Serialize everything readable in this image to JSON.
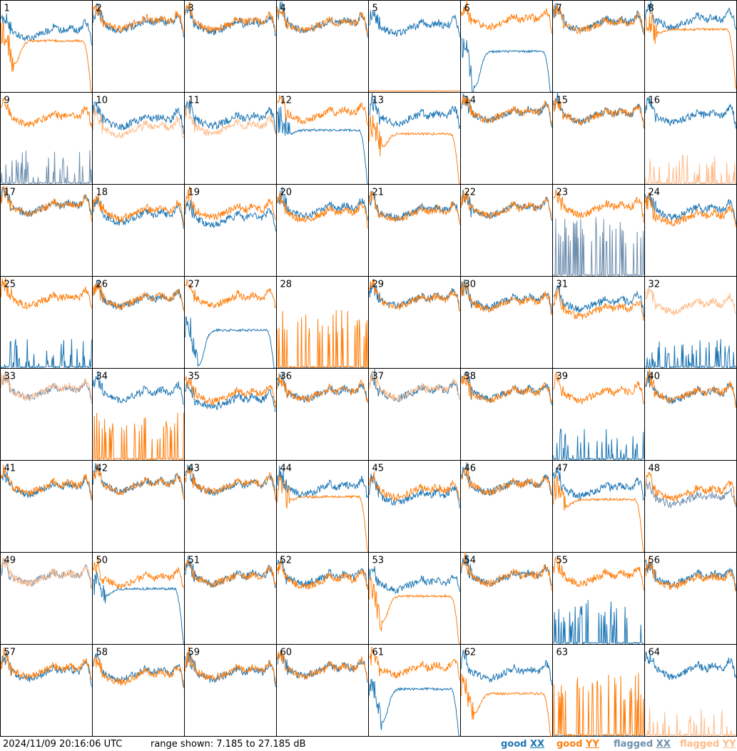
{
  "colors": {
    "good_xx": "#1f77b4",
    "good_yy": "#ff7f0e",
    "flagged_xx": "#7090b0",
    "flagged_yy": "#ffbb88",
    "frame": "#000000",
    "background": "#ffffff"
  },
  "footer": {
    "timestamp": "2024/11/09 20:16:06 UTC",
    "range": "range shown: 7.185 to 27.185 dB"
  },
  "legend": [
    {
      "label": "good",
      "pol": "XX",
      "color": "#1f77b4"
    },
    {
      "label": "good",
      "pol": "YY",
      "color": "#ff7f0e"
    },
    {
      "label": "flagged",
      "pol": "XX",
      "color": "#7090b0"
    },
    {
      "label": "flagged",
      "pol": "YY",
      "color": "#ffbb88"
    }
  ],
  "chart_data": {
    "type": "line",
    "layout": "8x8 grid of antenna spectra",
    "y_range_db": [
      7.185,
      27.185
    ],
    "series_names": [
      "XX",
      "YY"
    ],
    "panels": [
      {
        "label": "1",
        "xx": {
          "s": "base",
          "flag": false,
          "lvl": 20.5
        },
        "yy": {
          "s": "droop",
          "flag": false,
          "lvl": 18.3,
          "dip": 0.35
        }
      },
      {
        "label": "2",
        "xx": {
          "s": "base",
          "flag": false,
          "lvl": 22.1
        },
        "yy": {
          "s": "base",
          "flag": false,
          "lvl": 22.5
        }
      },
      {
        "label": "3",
        "xx": {
          "s": "base",
          "flag": false,
          "lvl": 21.9
        },
        "yy": {
          "s": "base",
          "flag": false,
          "lvl": 22.3
        }
      },
      {
        "label": "4",
        "xx": {
          "s": "base",
          "flag": false,
          "lvl": 22.1
        },
        "yy": {
          "s": "base",
          "flag": false,
          "lvl": 22.1
        }
      },
      {
        "label": "5",
        "xx": {
          "s": "base",
          "flag": false,
          "lvl": 21.5
        },
        "yy": {
          "s": "flat",
          "flag": false,
          "lvl": 7.4
        }
      },
      {
        "label": "6",
        "xx": {
          "s": "droop",
          "flag": false,
          "lvl": 16.0,
          "dip": 0.55
        },
        "yy": {
          "s": "base",
          "flag": false,
          "lvl": 22.9
        }
      },
      {
        "label": "7",
        "xx": {
          "s": "base",
          "flag": false,
          "lvl": 22.3
        },
        "yy": {
          "s": "base",
          "flag": false,
          "lvl": 22.1
        }
      },
      {
        "label": "8",
        "xx": {
          "s": "base",
          "flag": false,
          "lvl": 22.9
        },
        "yy": {
          "s": "droop",
          "flag": false,
          "lvl": 20.8,
          "dip": 0.05
        }
      },
      {
        "label": "9",
        "xx": {
          "s": "spike",
          "flag": true,
          "lvl": 8.5
        },
        "yy": {
          "s": "base",
          "flag": false,
          "lvl": 21.8
        }
      },
      {
        "label": "10",
        "xx": {
          "s": "base",
          "flag": false,
          "lvl": 21.2
        },
        "yy": {
          "s": "base",
          "flag": true,
          "lvl": 19.4
        }
      },
      {
        "label": "11",
        "xx": {
          "s": "base",
          "flag": false,
          "lvl": 21.4
        },
        "yy": {
          "s": "base",
          "flag": true,
          "lvl": 19.8
        }
      },
      {
        "label": "12",
        "xx": {
          "s": "droop",
          "flag": false,
          "lvl": 18.9,
          "dip": 0.05
        },
        "yy": {
          "s": "base",
          "flag": false,
          "lvl": 22.6
        }
      },
      {
        "label": "13",
        "xx": {
          "s": "base",
          "flag": false,
          "lvl": 21.9
        },
        "yy": {
          "s": "droop",
          "flag": false,
          "lvl": 18.1,
          "dip": 0.2
        }
      },
      {
        "label": "14",
        "xx": {
          "s": "base",
          "flag": false,
          "lvl": 22.7
        },
        "yy": {
          "s": "base",
          "flag": false,
          "lvl": 22.7
        }
      },
      {
        "label": "15",
        "xx": {
          "s": "base",
          "flag": false,
          "lvl": 22.4
        },
        "yy": {
          "s": "base",
          "flag": false,
          "lvl": 22.4
        }
      },
      {
        "label": "16",
        "xx": {
          "s": "base",
          "flag": false,
          "lvl": 22.1
        },
        "yy": {
          "s": "spike",
          "flag": true,
          "lvl": 7.8
        }
      },
      {
        "label": "17",
        "xx": {
          "s": "base",
          "flag": false,
          "lvl": 22.4
        },
        "yy": {
          "s": "base",
          "flag": false,
          "lvl": 22.4
        }
      },
      {
        "label": "18",
        "xx": {
          "s": "base",
          "flag": false,
          "lvl": 20.5
        },
        "yy": {
          "s": "base",
          "flag": false,
          "lvl": 21.3
        }
      },
      {
        "label": "19",
        "xx": {
          "s": "base",
          "flag": false,
          "lvl": 19.9
        },
        "yy": {
          "s": "base",
          "flag": false,
          "lvl": 21.6
        }
      },
      {
        "label": "20",
        "xx": {
          "s": "base",
          "flag": false,
          "lvl": 21.8
        },
        "yy": {
          "s": "base",
          "flag": false,
          "lvl": 20.9
        }
      },
      {
        "label": "21",
        "xx": {
          "s": "base",
          "flag": false,
          "lvl": 21.4
        },
        "yy": {
          "s": "base",
          "flag": false,
          "lvl": 21.1
        }
      },
      {
        "label": "22",
        "xx": {
          "s": "base",
          "flag": false,
          "lvl": 21.9
        },
        "yy": {
          "s": "base",
          "flag": false,
          "lvl": 21.9
        }
      },
      {
        "label": "23",
        "xx": {
          "s": "spike",
          "flag": true,
          "lvl": 14.0
        },
        "yy": {
          "s": "base",
          "flag": false,
          "lvl": 22.1
        }
      },
      {
        "label": "24",
        "xx": {
          "s": "base",
          "flag": false,
          "lvl": 21.5
        },
        "yy": {
          "s": "base",
          "flag": false,
          "lvl": 20.3
        }
      },
      {
        "label": "25",
        "xx": {
          "s": "spike",
          "flag": false,
          "lvl": 7.7
        },
        "yy": {
          "s": "base",
          "flag": false,
          "lvl": 22.3
        }
      },
      {
        "label": "26",
        "xx": {
          "s": "base",
          "flag": false,
          "lvl": 22.1
        },
        "yy": {
          "s": "base",
          "flag": false,
          "lvl": 22.3
        }
      },
      {
        "label": "27",
        "xx": {
          "s": "droop",
          "flag": false,
          "lvl": 15.4,
          "dip": 0.55
        },
        "yy": {
          "s": "base",
          "flag": false,
          "lvl": 22.4
        }
      },
      {
        "label": "28",
        "xx": {
          "s": "flat",
          "flag": false,
          "lvl": 7.2
        },
        "yy": {
          "s": "spike",
          "flag": false,
          "lvl": 14.0
        }
      },
      {
        "label": "29",
        "xx": {
          "s": "base",
          "flag": false,
          "lvl": 22.3
        },
        "yy": {
          "s": "base",
          "flag": false,
          "lvl": 22.0
        }
      },
      {
        "label": "30",
        "xx": {
          "s": "base",
          "flag": false,
          "lvl": 22.0
        },
        "yy": {
          "s": "base",
          "flag": false,
          "lvl": 21.5
        }
      },
      {
        "label": "31",
        "xx": {
          "s": "base",
          "flag": false,
          "lvl": 21.5
        },
        "yy": {
          "s": "base",
          "flag": false,
          "lvl": 20.0
        }
      },
      {
        "label": "32",
        "xx": {
          "s": "spike",
          "flag": false,
          "lvl": 7.6
        },
        "yy": {
          "s": "base",
          "flag": true,
          "lvl": 21.0
        }
      },
      {
        "label": "33",
        "xx": {
          "s": "base",
          "flag": true,
          "lvl": 22.4
        },
        "yy": {
          "s": "base",
          "flag": true,
          "lvl": 22.5
        }
      },
      {
        "label": "34",
        "xx": {
          "s": "base",
          "flag": false,
          "lvl": 21.8
        },
        "yy": {
          "s": "spike",
          "flag": false,
          "lvl": 11.5
        }
      },
      {
        "label": "35",
        "xx": {
          "s": "base",
          "flag": false,
          "lvl": 20.3
        },
        "yy": {
          "s": "base",
          "flag": false,
          "lvl": 21.5
        }
      },
      {
        "label": "36",
        "xx": {
          "s": "base",
          "flag": false,
          "lvl": 22.0
        },
        "yy": {
          "s": "base",
          "flag": false,
          "lvl": 22.0
        }
      },
      {
        "label": "37",
        "xx": {
          "s": "base",
          "flag": false,
          "lvl": 22.2
        },
        "yy": {
          "s": "base",
          "flag": true,
          "lvl": 22.4
        }
      },
      {
        "label": "38",
        "xx": {
          "s": "base",
          "flag": false,
          "lvl": 22.0
        },
        "yy": {
          "s": "base",
          "flag": false,
          "lvl": 21.8
        }
      },
      {
        "label": "39",
        "xx": {
          "s": "spike",
          "flag": false,
          "lvl": 8.0
        },
        "yy": {
          "s": "base",
          "flag": false,
          "lvl": 21.8
        }
      },
      {
        "label": "40",
        "xx": {
          "s": "base",
          "flag": false,
          "lvl": 21.7
        },
        "yy": {
          "s": "base",
          "flag": false,
          "lvl": 21.9
        }
      },
      {
        "label": "41",
        "xx": {
          "s": "base",
          "flag": false,
          "lvl": 21.3
        },
        "yy": {
          "s": "base",
          "flag": false,
          "lvl": 21.6
        }
      },
      {
        "label": "42",
        "xx": {
          "s": "base",
          "flag": false,
          "lvl": 22.0
        },
        "yy": {
          "s": "base",
          "flag": false,
          "lvl": 22.0
        }
      },
      {
        "label": "43",
        "xx": {
          "s": "base",
          "flag": false,
          "lvl": 21.7
        },
        "yy": {
          "s": "base",
          "flag": false,
          "lvl": 21.9
        }
      },
      {
        "label": "44",
        "xx": {
          "s": "base",
          "flag": false,
          "lvl": 21.2
        },
        "yy": {
          "s": "droop",
          "flag": false,
          "lvl": 19.2,
          "dip": 0.05
        }
      },
      {
        "label": "45",
        "xx": {
          "s": "base",
          "flag": false,
          "lvl": 19.5
        },
        "yy": {
          "s": "base",
          "flag": false,
          "lvl": 20.6
        }
      },
      {
        "label": "46",
        "xx": {
          "s": "base",
          "flag": false,
          "lvl": 21.8
        },
        "yy": {
          "s": "base",
          "flag": false,
          "lvl": 21.8
        }
      },
      {
        "label": "47",
        "xx": {
          "s": "base",
          "flag": false,
          "lvl": 21.0
        },
        "yy": {
          "s": "droop",
          "flag": false,
          "lvl": 18.6,
          "dip": 0.1
        }
      },
      {
        "label": "48",
        "xx": {
          "s": "base",
          "flag": true,
          "lvl": 19.0
        },
        "yy": {
          "s": "base",
          "flag": false,
          "lvl": 20.4
        }
      },
      {
        "label": "49",
        "xx": {
          "s": "base",
          "flag": true,
          "lvl": 22.0
        },
        "yy": {
          "s": "base",
          "flag": true,
          "lvl": 22.0
        }
      },
      {
        "label": "50",
        "xx": {
          "s": "droop",
          "flag": false,
          "lvl": 19.2,
          "dip": 0.1
        },
        "yy": {
          "s": "base",
          "flag": false,
          "lvl": 21.5
        }
      },
      {
        "label": "51",
        "xx": {
          "s": "base",
          "flag": false,
          "lvl": 21.8
        },
        "yy": {
          "s": "base",
          "flag": false,
          "lvl": 21.8
        }
      },
      {
        "label": "52",
        "xx": {
          "s": "base",
          "flag": false,
          "lvl": 21.8
        },
        "yy": {
          "s": "base",
          "flag": false,
          "lvl": 21.2
        }
      },
      {
        "label": "53",
        "xx": {
          "s": "base",
          "flag": false,
          "lvl": 20.5
        },
        "yy": {
          "s": "droop",
          "flag": false,
          "lvl": 17.6,
          "dip": 0.4
        }
      },
      {
        "label": "54",
        "xx": {
          "s": "base",
          "flag": false,
          "lvl": 22.0
        },
        "yy": {
          "s": "base",
          "flag": false,
          "lvl": 22.0
        }
      },
      {
        "label": "55",
        "xx": {
          "s": "spike",
          "flag": false,
          "lvl": 11.0
        },
        "yy": {
          "s": "base",
          "flag": false,
          "lvl": 22.0
        }
      },
      {
        "label": "56",
        "xx": {
          "s": "base",
          "flag": false,
          "lvl": 21.8
        },
        "yy": {
          "s": "base",
          "flag": false,
          "lvl": 21.2
        }
      },
      {
        "label": "57",
        "xx": {
          "s": "base",
          "flag": false,
          "lvl": 21.2
        },
        "yy": {
          "s": "base",
          "flag": false,
          "lvl": 21.7
        }
      },
      {
        "label": "58",
        "xx": {
          "s": "base",
          "flag": false,
          "lvl": 21.0
        },
        "yy": {
          "s": "base",
          "flag": false,
          "lvl": 20.5
        }
      },
      {
        "label": "59",
        "xx": {
          "s": "base",
          "flag": false,
          "lvl": 21.1
        },
        "yy": {
          "s": "base",
          "flag": false,
          "lvl": 21.4
        }
      },
      {
        "label": "60",
        "xx": {
          "s": "base",
          "flag": false,
          "lvl": 21.8
        },
        "yy": {
          "s": "base",
          "flag": false,
          "lvl": 21.8
        }
      },
      {
        "label": "61",
        "xx": {
          "s": "droop",
          "flag": false,
          "lvl": 17.4,
          "dip": 0.5
        },
        "yy": {
          "s": "base",
          "flag": false,
          "lvl": 22.0
        }
      },
      {
        "label": "62",
        "xx": {
          "s": "base",
          "flag": false,
          "lvl": 21.2
        },
        "yy": {
          "s": "droop",
          "flag": false,
          "lvl": 16.4,
          "dip": 0.3
        }
      },
      {
        "label": "63",
        "xx": {
          "s": "flat",
          "flag": false,
          "lvl": 7.2
        },
        "yy": {
          "s": "spike",
          "flag": false,
          "lvl": 15.0
        }
      },
      {
        "label": "64",
        "xx": {
          "s": "base",
          "flag": false,
          "lvl": 21.8
        },
        "yy": {
          "s": "spike",
          "flag": true,
          "lvl": 7.8
        }
      }
    ]
  }
}
